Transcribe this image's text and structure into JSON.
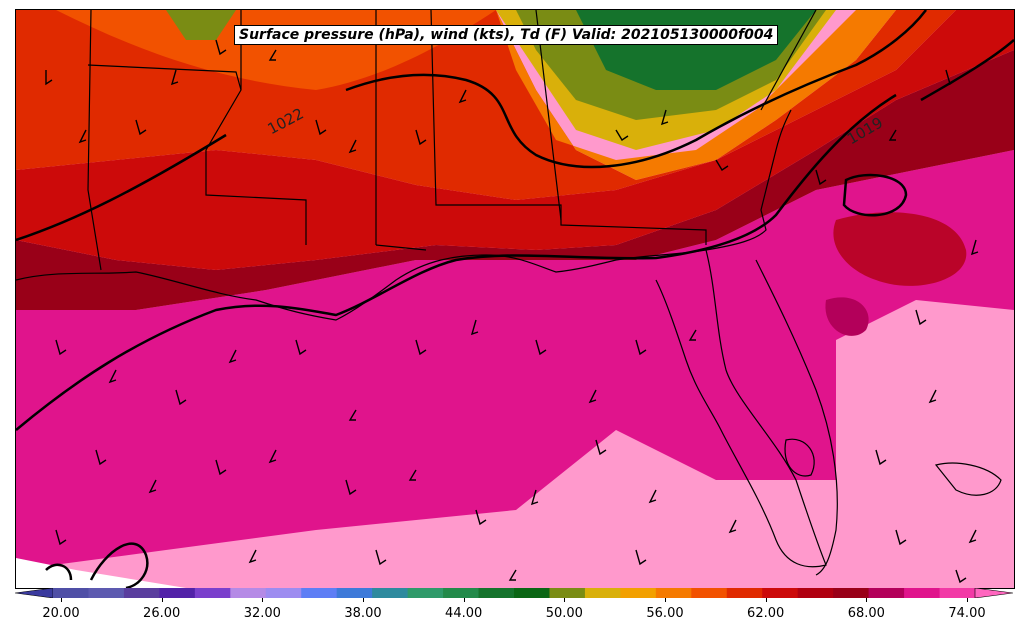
{
  "title": "Surface pressure (hPa), wind (kts), Td (F) Valid: 202105130000f004",
  "map": {
    "isobar_labels": [
      "1022",
      "1019"
    ]
  },
  "colorbar": {
    "ticks": [
      "20.00",
      "26.00",
      "32.00",
      "38.00",
      "44.00",
      "50.00",
      "56.00",
      "62.00",
      "68.00",
      "74.00"
    ],
    "colors": [
      "#3a3a9e",
      "#4f4fa6",
      "#5d5ab0",
      "#5a3e9e",
      "#5222a8",
      "#7a3fcc",
      "#b58ae6",
      "#9d8cf0",
      "#5e7ef5",
      "#3e7ad9",
      "#2e8a9e",
      "#2f9a6a",
      "#238a4a",
      "#15732c",
      "#0a6614",
      "#7a8c14",
      "#d9b00a",
      "#f2a000",
      "#f57a00",
      "#f25200",
      "#e02a00",
      "#cc0a0a",
      "#b00010",
      "#990018",
      "#b3005a",
      "#e0148c",
      "#f23aa6",
      "#ff66bf"
    ]
  }
}
